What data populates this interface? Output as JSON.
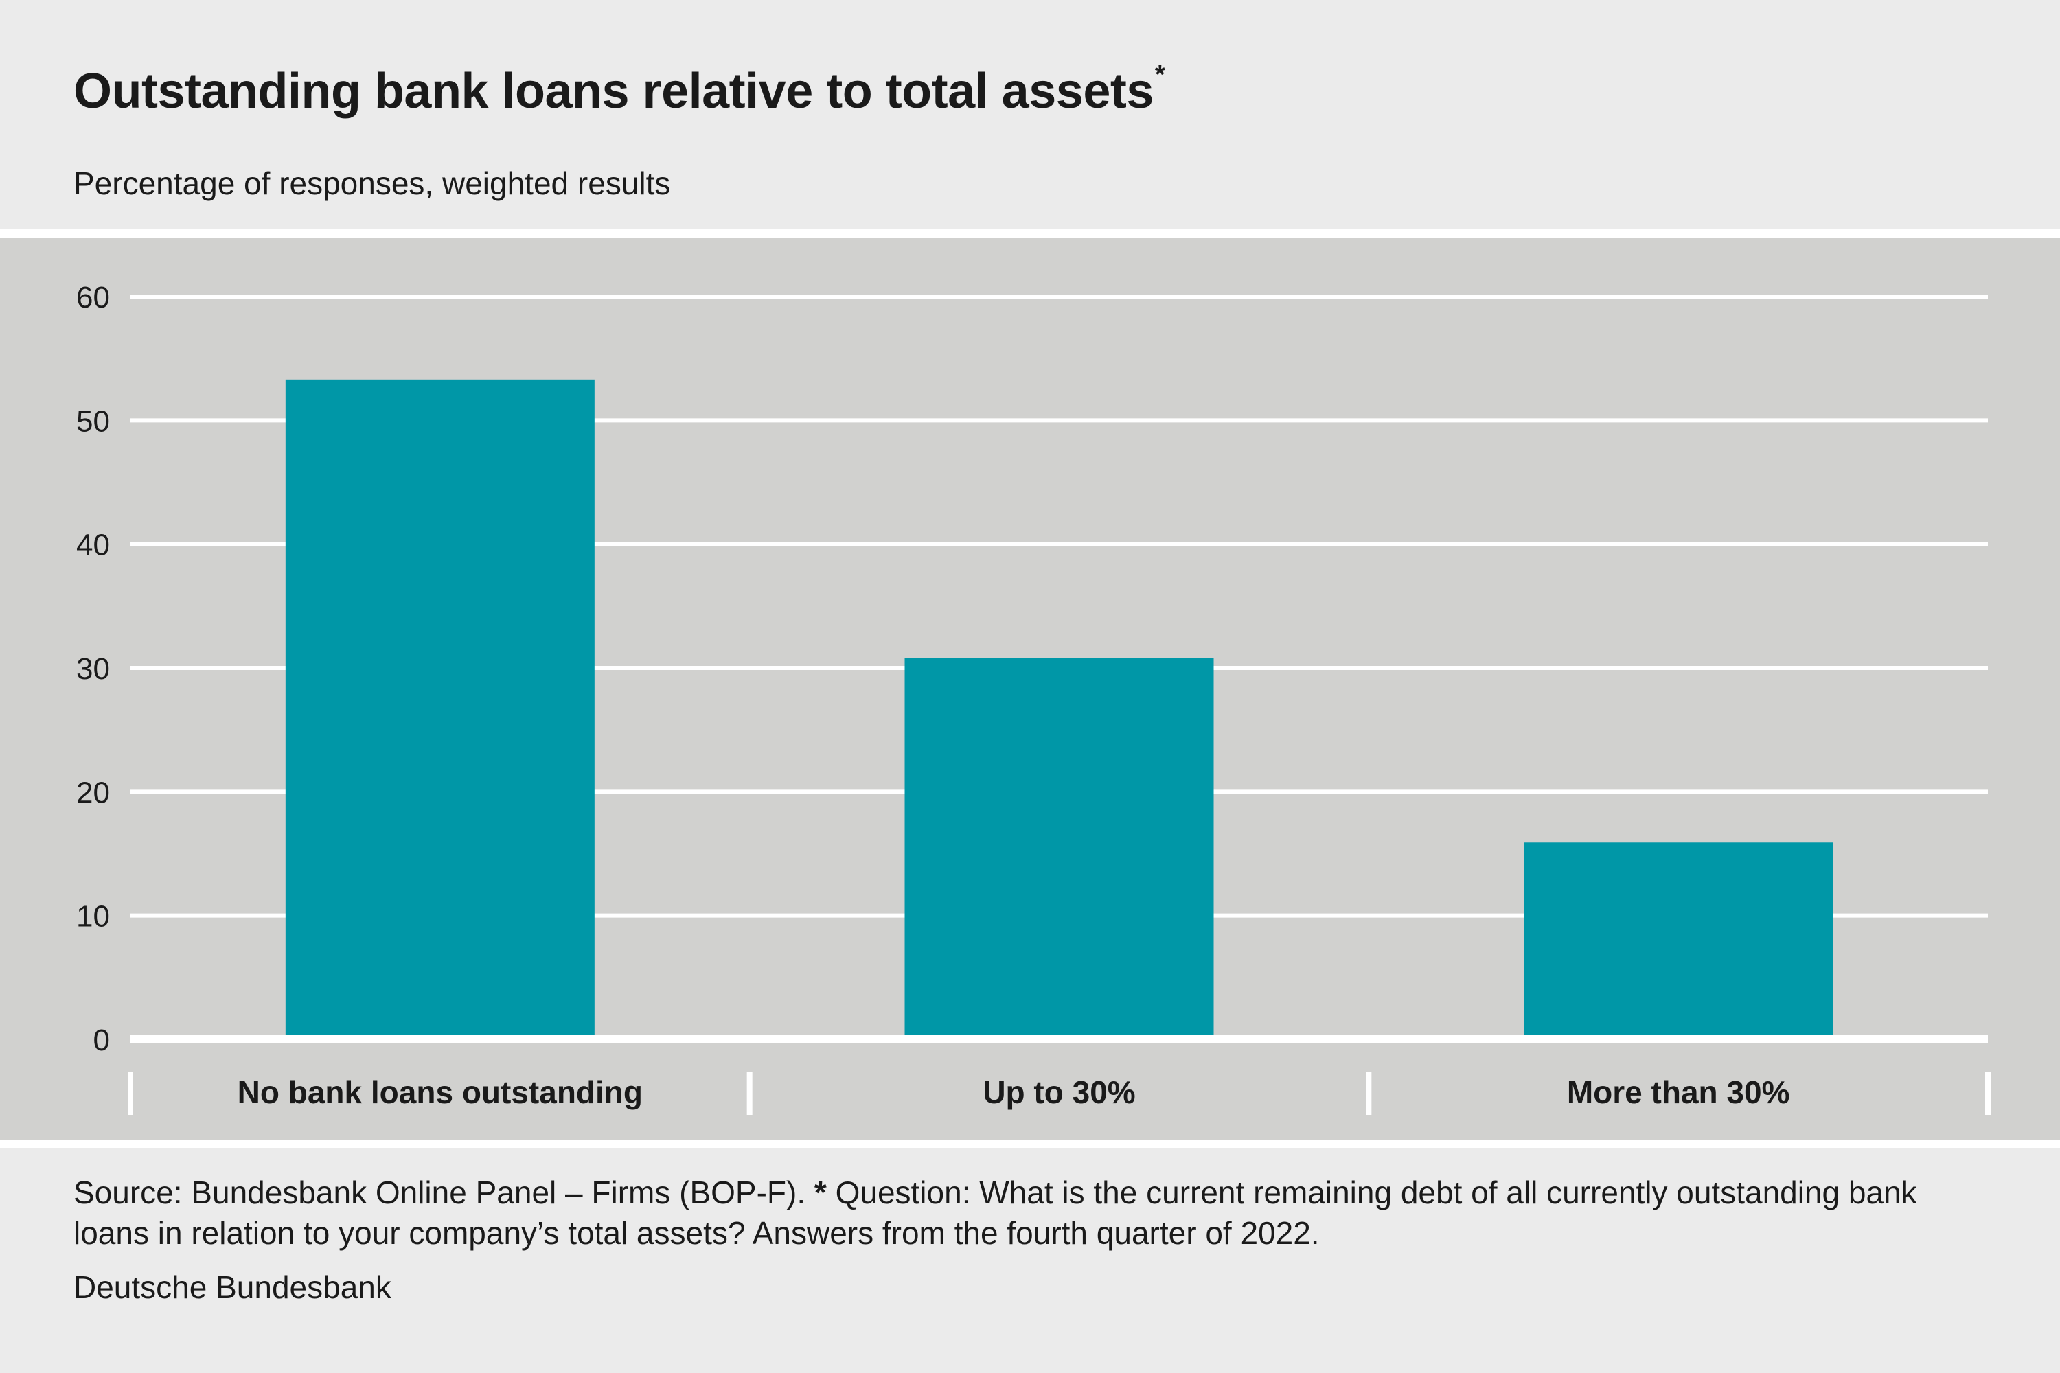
{
  "header": {
    "title": "Outstanding bank loans relative to total assets",
    "title_mark": "*",
    "subtitle": "Percentage of responses, weighted results"
  },
  "footer": {
    "source_prefix": "Source: Bundesbank Online Panel – Firms (BOP-F).",
    "source_mark": "*",
    "source_text": "Question: What is the current remaining debt of all currently outstanding bank loans in relation to your company’s total assets? Answers from the fourth quarter of 2022.",
    "publisher": "Deutsche Bundesbank"
  },
  "colors": {
    "bar": "#0097a7",
    "panel": "#d1d1cf",
    "gridline": "#ffffff",
    "background": "#ebebeb"
  },
  "chart_data": {
    "type": "bar",
    "categories": [
      "No bank loans outstanding",
      "Up to 30%",
      "More than 30%"
    ],
    "values": [
      53.3,
      30.8,
      15.9
    ],
    "ylim": [
      0,
      60
    ],
    "yticks": [
      "0",
      "10",
      "20",
      "30",
      "40",
      "50",
      "60"
    ],
    "grid": true,
    "xlabel": "",
    "ylabel": ""
  }
}
